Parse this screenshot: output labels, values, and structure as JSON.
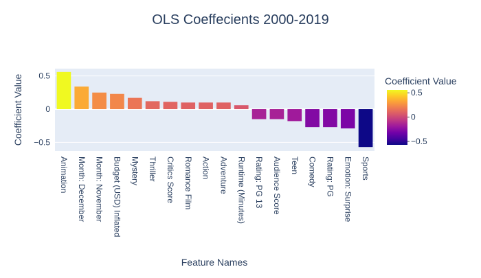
{
  "chart_data": {
    "type": "bar",
    "title": "OLS Coeffecients 2000-2019",
    "xlabel": "Feature Names",
    "ylabel": "Coefficient Value",
    "categories": [
      "Animation",
      "Month: December",
      "Month: November",
      "Budget (USD) Inflated",
      "Mystery",
      "Thriller",
      "Critics Score",
      "Romance Film",
      "Action",
      "Adventure",
      "Runtime (Minutes)",
      "Rating: PG 13",
      "Audience Score",
      "Teen",
      "Comedy",
      "Rating: PG",
      "Emotion: Surprise",
      "Sports"
    ],
    "values": [
      0.56,
      0.34,
      0.25,
      0.23,
      0.17,
      0.12,
      0.11,
      0.1,
      0.1,
      0.1,
      0.06,
      -0.15,
      -0.15,
      -0.18,
      -0.27,
      -0.27,
      -0.29,
      -0.57
    ],
    "ylim": [
      -0.63,
      0.61
    ],
    "yticks": [
      -0.5,
      0,
      0.5
    ],
    "ytick_labels": [
      "−0.5",
      "0",
      "0.5"
    ],
    "grid": true,
    "colorbar": {
      "title": "Coefficient Value",
      "range": [
        -0.57,
        0.56
      ],
      "ticks": [
        -0.5,
        0,
        0.5
      ],
      "tick_labels": [
        "−0.5",
        "0",
        "0.5"
      ],
      "colorscale": "plasma"
    },
    "colors": {
      "plot_background": "#e5ecf6",
      "grid": "#ffffff",
      "text": "#2a3f5f",
      "title": "#2a3f5f"
    }
  }
}
